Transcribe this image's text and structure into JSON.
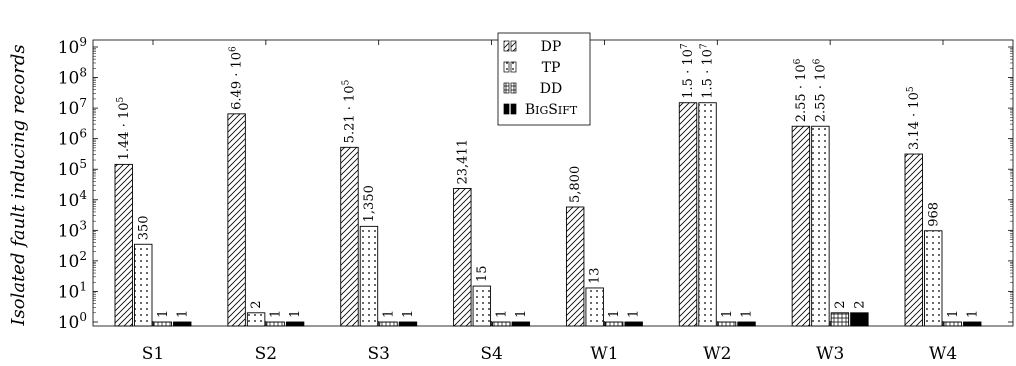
{
  "chart_data": {
    "type": "bar",
    "title": "",
    "xlabel": "",
    "ylabel": "Isolated fault inducing records",
    "yscale": "log",
    "ylim": [
      0.7,
      2000000000
    ],
    "yticks": [
      {
        "value": 1,
        "exp": "0"
      },
      {
        "value": 10,
        "exp": "1"
      },
      {
        "value": 100,
        "exp": "2"
      },
      {
        "value": 1000,
        "exp": "3"
      },
      {
        "value": 10000,
        "exp": "4"
      },
      {
        "value": 100000,
        "exp": "5"
      },
      {
        "value": 1000000,
        "exp": "6"
      },
      {
        "value": 10000000,
        "exp": "7"
      },
      {
        "value": 100000000,
        "exp": "8"
      },
      {
        "value": 1000000000,
        "exp": "9"
      }
    ],
    "tick_base": "10",
    "categories": [
      "S1",
      "S2",
      "S3",
      "S4",
      "W1",
      "W2",
      "W3",
      "W4"
    ],
    "legend_position": "top-center",
    "grid": false,
    "series": [
      {
        "name": "DP",
        "pattern": "diagonal-hatch",
        "values": [
          144000,
          6490000,
          521000,
          23411,
          5800,
          15000000,
          2550000,
          314000
        ],
        "labels": [
          {
            "mantissa": "1.44",
            "exp": "5"
          },
          {
            "mantissa": "6.49",
            "exp": "6"
          },
          {
            "mantissa": "5.21",
            "exp": "5"
          },
          {
            "text": "23,411"
          },
          {
            "text": "5,800"
          },
          {
            "mantissa": "1.5",
            "exp": "7"
          },
          {
            "mantissa": "2.55",
            "exp": "6"
          },
          {
            "mantissa": "3.14",
            "exp": "5"
          }
        ]
      },
      {
        "name": "TP",
        "pattern": "dots",
        "values": [
          350,
          2,
          1350,
          15,
          13,
          15000000,
          2550000,
          968
        ],
        "labels": [
          {
            "text": "350"
          },
          {
            "text": "2"
          },
          {
            "text": "1,350"
          },
          {
            "text": "15"
          },
          {
            "text": "13"
          },
          {
            "mantissa": "1.5",
            "exp": "7"
          },
          {
            "mantissa": "2.55",
            "exp": "6"
          },
          {
            "text": "968"
          }
        ]
      },
      {
        "name": "DD",
        "pattern": "grid",
        "values": [
          1,
          1,
          1,
          1,
          1,
          1,
          2,
          1
        ],
        "labels": [
          {
            "text": "1"
          },
          {
            "text": "1"
          },
          {
            "text": "1"
          },
          {
            "text": "1"
          },
          {
            "text": "1"
          },
          {
            "text": "1"
          },
          {
            "text": "2"
          },
          {
            "text": "1"
          }
        ]
      },
      {
        "name": "BigSift",
        "name_display": {
          "first": "B",
          "rest": "IG",
          "first2": "S",
          "rest2": "IFT"
        },
        "pattern": "solid",
        "values": [
          1,
          1,
          1,
          1,
          1,
          1,
          2,
          1
        ],
        "labels": [
          {
            "text": "1"
          },
          {
            "text": "1"
          },
          {
            "text": "1"
          },
          {
            "text": "1"
          },
          {
            "text": "1"
          },
          {
            "text": "1"
          },
          {
            "text": "2"
          },
          {
            "text": "1"
          }
        ]
      }
    ]
  }
}
